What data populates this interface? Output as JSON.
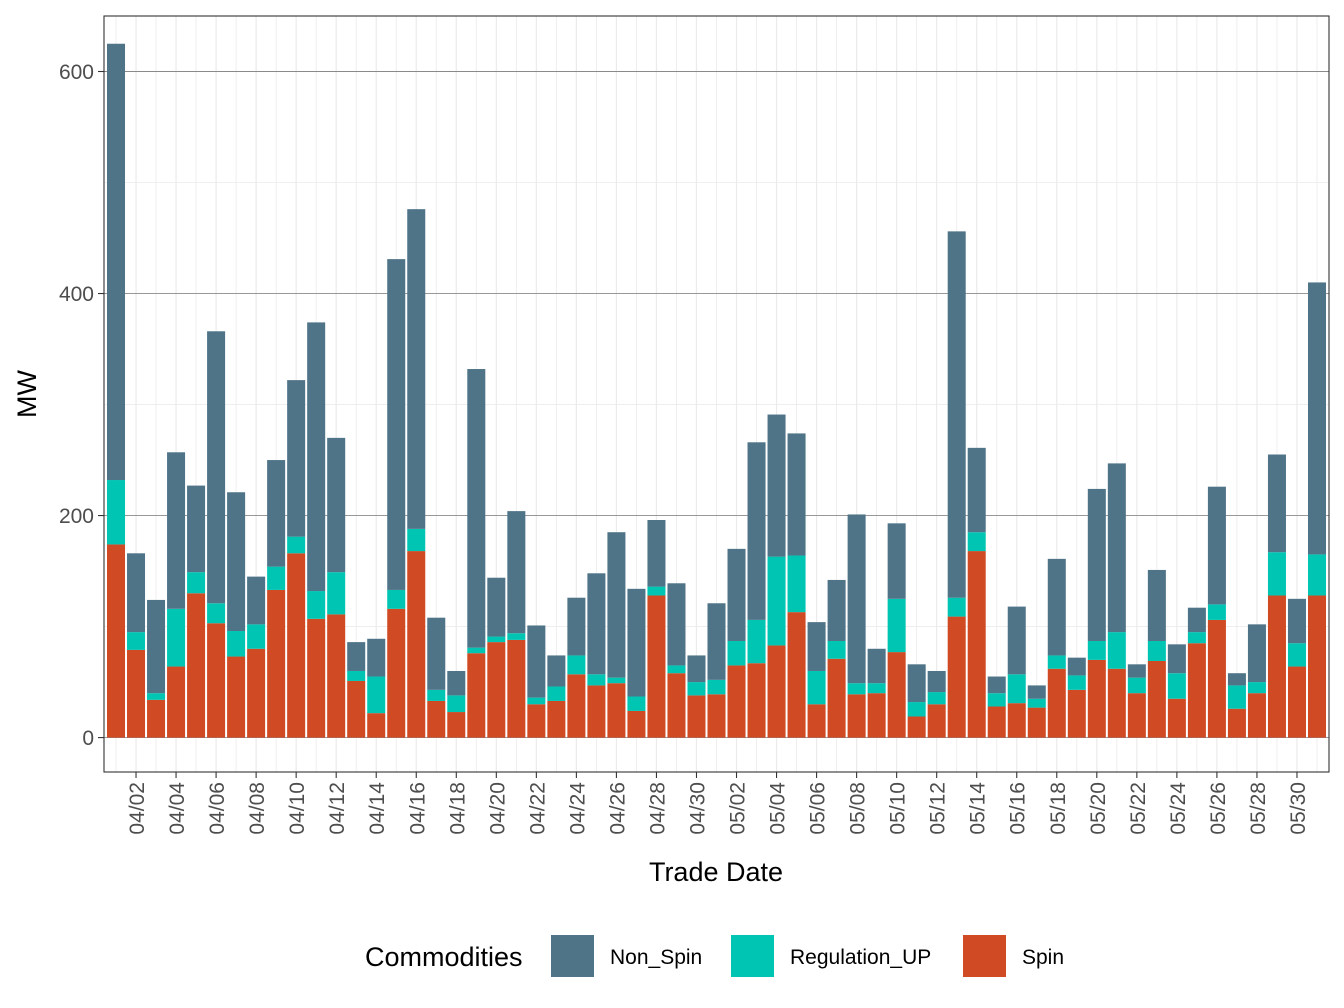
{
  "chart_data": {
    "type": "bar",
    "stacked": true,
    "title": "",
    "xlabel": "Trade Date",
    "ylabel": "MW",
    "ylim": [
      -31,
      650
    ],
    "y_ticks": [
      0,
      200,
      400,
      600
    ],
    "grid": true,
    "categories": [
      "04/01",
      "04/02",
      "04/03",
      "04/04",
      "04/05",
      "04/06",
      "04/07",
      "04/08",
      "04/09",
      "04/10",
      "04/11",
      "04/12",
      "04/13",
      "04/14",
      "04/15",
      "04/16",
      "04/17",
      "04/18",
      "04/19",
      "04/20",
      "04/21",
      "04/22",
      "04/23",
      "04/24",
      "04/25",
      "04/26",
      "04/27",
      "04/28",
      "04/29",
      "04/30",
      "05/01",
      "05/02",
      "05/03",
      "05/04",
      "05/05",
      "05/06",
      "05/07",
      "05/08",
      "05/09",
      "05/10",
      "05/11",
      "05/12",
      "05/13",
      "05/14",
      "05/15",
      "05/16",
      "05/17",
      "05/18",
      "05/19",
      "05/20",
      "05/21",
      "05/22",
      "05/23",
      "05/24",
      "05/25",
      "05/26",
      "05/27",
      "05/28",
      "05/29",
      "05/30",
      "05/31"
    ],
    "x_tick_labels": [
      "04/02",
      "04/04",
      "04/06",
      "04/08",
      "04/10",
      "04/12",
      "04/14",
      "04/16",
      "04/18",
      "04/20",
      "04/22",
      "04/24",
      "04/26",
      "04/28",
      "04/30",
      "05/02",
      "05/04",
      "05/06",
      "05/08",
      "05/10",
      "05/12",
      "05/14",
      "05/16",
      "05/18",
      "05/20",
      "05/22",
      "05/24",
      "05/26",
      "05/28",
      "05/30"
    ],
    "series": [
      {
        "name": "Spin",
        "color": "#d04a23",
        "values": [
          174,
          79,
          34,
          64,
          130,
          103,
          73,
          80,
          133,
          166,
          107,
          111,
          51,
          22,
          116,
          168,
          33,
          23,
          76,
          86,
          88,
          30,
          33,
          57,
          47,
          49,
          24,
          128,
          58,
          38,
          39,
          65,
          67,
          83,
          113,
          30,
          71,
          39,
          40,
          77,
          19,
          30,
          109,
          168,
          28,
          31,
          27,
          62,
          43,
          70,
          62,
          40,
          69,
          35,
          85,
          106,
          26,
          40,
          128,
          64,
          128
        ]
      },
      {
        "name": "Regulation_UP",
        "color": "#00c5b3",
        "values": [
          58,
          16,
          6,
          52,
          19,
          18,
          23,
          22,
          21,
          15,
          25,
          38,
          9,
          33,
          17,
          20,
          10,
          15,
          5,
          5,
          6,
          6,
          13,
          17,
          10,
          5,
          13,
          8,
          7,
          12,
          13,
          22,
          39,
          80,
          51,
          30,
          16,
          10,
          9,
          48,
          13,
          11,
          17,
          17,
          12,
          26,
          8,
          12,
          13,
          17,
          33,
          14,
          18,
          23,
          10,
          14,
          21,
          10,
          39,
          21,
          37
        ]
      },
      {
        "name": "Non_Spin",
        "color": "#4f7488",
        "values": [
          393,
          71,
          84,
          141,
          78,
          245,
          125,
          43,
          96,
          141,
          242,
          121,
          26,
          34,
          298,
          288,
          65,
          22,
          251,
          53,
          110,
          65,
          28,
          52,
          91,
          131,
          97,
          60,
          74,
          24,
          69,
          83,
          160,
          128,
          110,
          44,
          55,
          152,
          31,
          68,
          34,
          19,
          330,
          76,
          15,
          61,
          12,
          87,
          16,
          137,
          152,
          12,
          64,
          26,
          22,
          106,
          11,
          52,
          88,
          40,
          245
        ]
      }
    ],
    "stack_order": [
      "Spin",
      "Regulation_UP",
      "Non_Spin"
    ],
    "legend": {
      "title": "Commodities",
      "position": "bottom",
      "items": [
        {
          "label": "Non_Spin",
          "color": "#4f7488"
        },
        {
          "label": "Regulation_UP",
          "color": "#00c5b3"
        },
        {
          "label": "Spin",
          "color": "#d04a23"
        }
      ]
    }
  }
}
